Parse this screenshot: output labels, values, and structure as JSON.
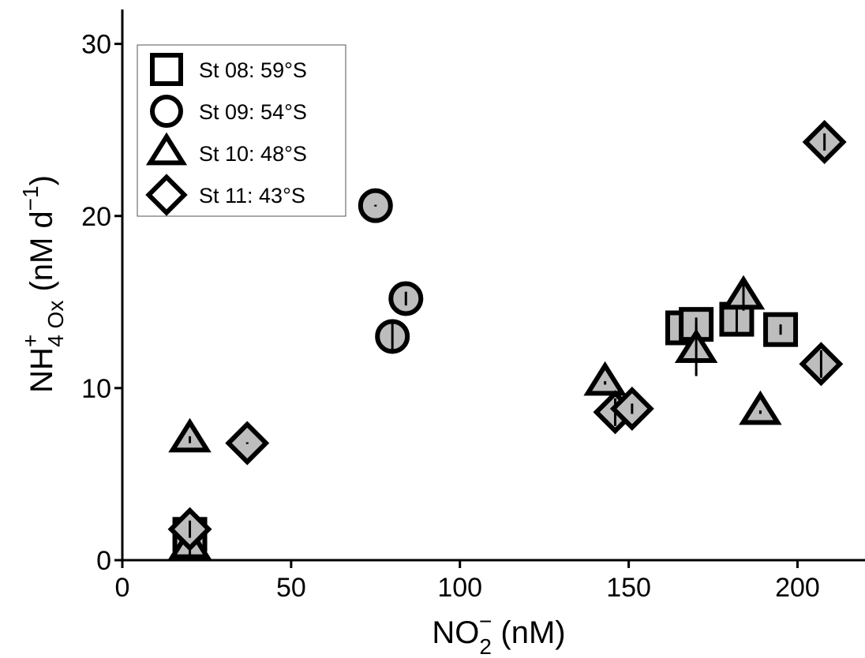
{
  "chart_data": {
    "type": "scatter",
    "xlabel": {
      "main": "NO",
      "sub": "2",
      "sup": "−",
      "unit": " (nM)"
    },
    "ylabel": {
      "main": "NH",
      "sup": "+",
      "sub": "4 Ox",
      "unit": " (nM d",
      "unit_sup": "−1",
      "unit_end": ")"
    },
    "xlim": [
      0,
      220
    ],
    "ylim": [
      0,
      32
    ],
    "x_ticks": [
      0,
      50,
      100,
      150,
      200
    ],
    "y_ticks": [
      0,
      10,
      20,
      30
    ],
    "x_tick_labels": [
      "0",
      "50",
      "100",
      "150",
      "200"
    ],
    "y_tick_labels": [
      "0",
      "10",
      "20",
      "30"
    ],
    "grid": false,
    "legend_position": "top-left",
    "marker_fill": "#bdbdbd",
    "marker_stroke": "#000000",
    "series": [
      {
        "name": "St 08: 59°S",
        "marker": "square",
        "points": [
          {
            "x": 20,
            "y": 1.5,
            "err": 0.3
          },
          {
            "x": 166,
            "y": 13.5,
            "err": 0.3
          },
          {
            "x": 170,
            "y": 13.7,
            "err": 0.4
          },
          {
            "x": 182,
            "y": 14.0,
            "err": 1.0
          },
          {
            "x": 195,
            "y": 13.4,
            "err": 0.3
          }
        ]
      },
      {
        "name": "St 09: 54°S",
        "marker": "circle",
        "points": [
          {
            "x": 75,
            "y": 20.6,
            "err": 0.05
          },
          {
            "x": 80,
            "y": 13.0,
            "err": 0.8
          },
          {
            "x": 84,
            "y": 15.2,
            "err": 0.4
          }
        ]
      },
      {
        "name": "St 10: 48°S",
        "marker": "triangle",
        "points": [
          {
            "x": 20,
            "y": 0.8,
            "err": 0.5
          },
          {
            "x": 20,
            "y": 7.0,
            "err": 0.2
          },
          {
            "x": 143,
            "y": 10.3,
            "err": 0.1
          },
          {
            "x": 170,
            "y": 12.2,
            "err": 1.5
          },
          {
            "x": 184,
            "y": 15.3,
            "err": 0.8
          },
          {
            "x": 189,
            "y": 8.6,
            "err": 0.1
          }
        ]
      },
      {
        "name": "St 11: 43°S",
        "marker": "diamond",
        "points": [
          {
            "x": 20,
            "y": 1.8,
            "err": 0.5
          },
          {
            "x": 37,
            "y": 6.8,
            "err": 0.05
          },
          {
            "x": 146,
            "y": 8.6,
            "err": 0.8
          },
          {
            "x": 151,
            "y": 8.8,
            "err": 0.3
          },
          {
            "x": 207,
            "y": 11.4,
            "err": 0.8
          },
          {
            "x": 208,
            "y": 24.3,
            "err": 0.5
          }
        ]
      }
    ]
  }
}
